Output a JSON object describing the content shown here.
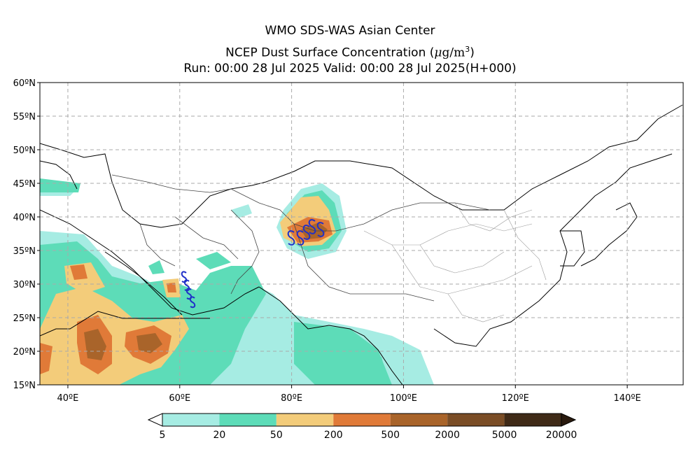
{
  "header": {
    "line1": "WMO SDS-WAS Asian Center",
    "line2_text": "NCEP Dust Surface Concentration (",
    "line2_unit_mu": "μ",
    "line2_unit_rest": "g/m",
    "line2_unit_exp": "3",
    "line2_close": ")",
    "line3": "Run: 00:00 28 Jul 2025    Valid: 00:00 28 Jul 2025(H+000)"
  },
  "map": {
    "lon_range": [
      35,
      150
    ],
    "lat_range": [
      15,
      60
    ],
    "lat_ticks": [
      {
        "value": 60,
        "label": "60ºN"
      },
      {
        "value": 55,
        "label": "55ºN"
      },
      {
        "value": 50,
        "label": "50ºN"
      },
      {
        "value": 45,
        "label": "45ºN"
      },
      {
        "value": 40,
        "label": "40ºN"
      },
      {
        "value": 35,
        "label": "35ºN"
      },
      {
        "value": 30,
        "label": "30ºN"
      },
      {
        "value": 25,
        "label": "25ºN"
      },
      {
        "value": 20,
        "label": "20ºN"
      },
      {
        "value": 15,
        "label": "15ºN"
      }
    ],
    "lon_ticks": [
      {
        "value": 40,
        "label": "40ºE"
      },
      {
        "value": 60,
        "label": "60ºE"
      },
      {
        "value": 80,
        "label": "80ºE"
      },
      {
        "value": 100,
        "label": "100ºE"
      },
      {
        "value": 120,
        "label": "120ºE"
      },
      {
        "value": 140,
        "label": "140ºE"
      }
    ],
    "grid": true,
    "dust_storm_symbol": "S"
  },
  "colorbar": {
    "ticks": [
      "5",
      "20",
      "50",
      "200",
      "500",
      "2000",
      "5000",
      "20000"
    ],
    "colors": [
      "#a6ece3",
      "#5ddcb8",
      "#f3cc7a",
      "#e07a38",
      "#a9642a",
      "#7a4d26",
      "#3f2a17"
    ],
    "under_color": "#ffffff",
    "over_color": "#2a1a0e"
  }
}
